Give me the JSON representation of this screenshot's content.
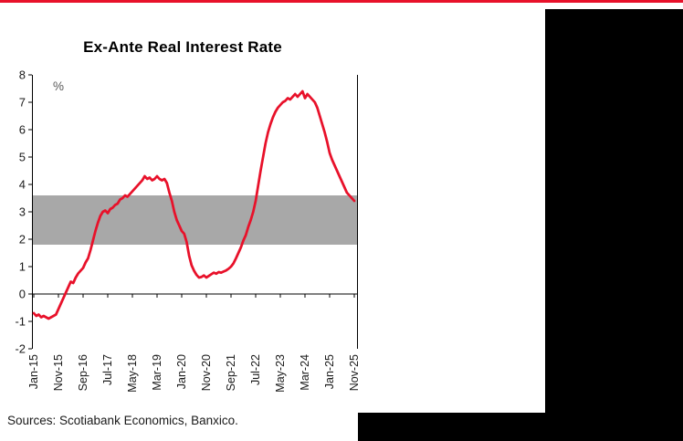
{
  "page": {
    "accent_red": "#e8112a",
    "panel_black": "#000000"
  },
  "chart_data": {
    "type": "line",
    "title": "Ex-Ante Real Interest Rate",
    "ylabel": "%",
    "xlabel": "",
    "ylim": [
      -2,
      8
    ],
    "ytick_interval": 1,
    "ytick_labels": [
      "8",
      "7",
      "6",
      "5",
      "4",
      "3",
      "2",
      "1",
      "0",
      "-1",
      "-2"
    ],
    "grid": "off",
    "legend": "none",
    "frequency": "monthly",
    "start_month": "Jan-15",
    "end_month": "Nov-25",
    "x_tick_labels": [
      "Jan-15",
      "Nov-15",
      "Sep-16",
      "Jul-17",
      "May-18",
      "Mar-19",
      "Jan-20",
      "Nov-20",
      "Sep-21",
      "Jul-22",
      "May-23",
      "Mar-24",
      "Jan-25",
      "Nov-25"
    ],
    "x_tick_every_n_months": 10,
    "band": {
      "from": 1.8,
      "to": 3.6,
      "color": "#a8a8a8",
      "meaning": "shaded horizontal range"
    },
    "series": [
      {
        "name": "Ex-ante real interest rate",
        "color": "#e8112a",
        "values": [
          -0.7,
          -0.8,
          -0.75,
          -0.85,
          -0.8,
          -0.85,
          -0.9,
          -0.85,
          -0.8,
          -0.75,
          -0.55,
          -0.35,
          -0.15,
          0.05,
          0.25,
          0.45,
          0.4,
          0.6,
          0.75,
          0.85,
          0.95,
          1.15,
          1.3,
          1.6,
          1.95,
          2.3,
          2.6,
          2.85,
          3.0,
          3.05,
          2.95,
          3.1,
          3.15,
          3.25,
          3.3,
          3.45,
          3.5,
          3.6,
          3.55,
          3.65,
          3.75,
          3.85,
          3.95,
          4.05,
          4.15,
          4.3,
          4.2,
          4.25,
          4.15,
          4.2,
          4.3,
          4.2,
          4.15,
          4.2,
          4.05,
          3.7,
          3.4,
          3.0,
          2.7,
          2.5,
          2.3,
          2.2,
          1.9,
          1.4,
          1.05,
          0.85,
          0.7,
          0.6,
          0.62,
          0.68,
          0.6,
          0.66,
          0.72,
          0.78,
          0.74,
          0.8,
          0.78,
          0.82,
          0.86,
          0.92,
          1.0,
          1.12,
          1.3,
          1.5,
          1.7,
          1.95,
          2.15,
          2.45,
          2.7,
          3.0,
          3.4,
          3.95,
          4.5,
          5.0,
          5.5,
          5.9,
          6.2,
          6.45,
          6.65,
          6.8,
          6.9,
          7.0,
          7.05,
          7.15,
          7.1,
          7.2,
          7.3,
          7.2,
          7.3,
          7.4,
          7.15,
          7.3,
          7.2,
          7.1,
          7.0,
          6.8,
          6.5,
          6.2,
          5.9,
          5.55,
          5.15,
          4.9,
          4.7,
          4.5,
          4.3,
          4.1,
          3.9,
          3.7,
          3.6,
          3.5,
          3.4
        ]
      }
    ],
    "source_note": "Sources: Scotiabank Economics, Banxico."
  }
}
